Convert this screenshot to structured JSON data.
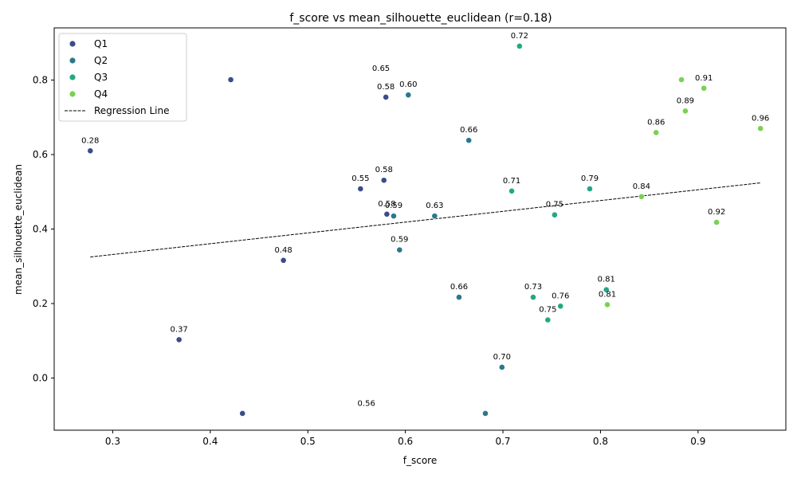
{
  "chart_data": {
    "type": "scatter",
    "title": "f_score vs mean_silhouette_euclidean (r=0.18)",
    "xlabel": "f_score",
    "ylabel": "mean_silhouette_euclidean",
    "xlim": [
      0.24,
      0.99
    ],
    "ylim": [
      -0.14,
      0.94
    ],
    "xticks": [
      "0.3",
      "0.4",
      "0.5",
      "0.6",
      "0.7",
      "0.8",
      "0.9"
    ],
    "xtick_values": [
      0.3,
      0.4,
      0.5,
      0.6,
      0.7,
      0.8,
      0.9
    ],
    "yticks": [
      "0.0",
      "0.2",
      "0.4",
      "0.6",
      "0.8"
    ],
    "ytick_values": [
      0.0,
      0.2,
      0.4,
      0.6,
      0.8
    ],
    "grid": false,
    "legend_position": "top-left",
    "legend": [
      "Q1",
      "Q2",
      "Q3",
      "Q4",
      "Regression Line"
    ],
    "series": [
      {
        "name": "Q1",
        "color": "#3b4c8a",
        "points": [
          {
            "x": 0.277,
            "y": 0.61,
            "label": "0.28"
          },
          {
            "x": 0.368,
            "y": 0.103,
            "label": "0.37"
          },
          {
            "x": 0.421,
            "y": 0.801,
            "label": ""
          },
          {
            "x": 0.433,
            "y": -0.095,
            "label": ""
          },
          {
            "x": 0.475,
            "y": 0.316,
            "label": "0.48"
          },
          {
            "x": 0.554,
            "y": 0.508,
            "label": "0.55"
          },
          {
            "x": 0.578,
            "y": 0.531,
            "label": "0.58"
          },
          {
            "x": 0.58,
            "y": 0.754,
            "label": "0.58"
          },
          {
            "x": 0.581,
            "y": 0.44,
            "label": "0.58"
          }
        ]
      },
      {
        "name": "Q2",
        "color": "#2a788e",
        "points": [
          {
            "x": 0.588,
            "y": 0.435,
            "label": "0.59"
          },
          {
            "x": 0.594,
            "y": 0.344,
            "label": "0.59"
          },
          {
            "x": 0.603,
            "y": 0.76,
            "label": "0.60"
          },
          {
            "x": 0.63,
            "y": 0.435,
            "label": "0.63"
          },
          {
            "x": 0.655,
            "y": 0.217,
            "label": "0.66"
          },
          {
            "x": 0.665,
            "y": 0.638,
            "label": "0.66"
          },
          {
            "x": 0.682,
            "y": -0.095,
            "label": ""
          },
          {
            "x": 0.699,
            "y": 0.029,
            "label": "0.70"
          }
        ]
      },
      {
        "name": "Q3",
        "color": "#22a884",
        "points": [
          {
            "x": 0.709,
            "y": 0.502,
            "label": "0.71"
          },
          {
            "x": 0.717,
            "y": 0.891,
            "label": "0.72"
          },
          {
            "x": 0.731,
            "y": 0.217,
            "label": "0.73"
          },
          {
            "x": 0.746,
            "y": 0.156,
            "label": "0.75"
          },
          {
            "x": 0.753,
            "y": 0.438,
            "label": "0.75"
          },
          {
            "x": 0.759,
            "y": 0.193,
            "label": "0.76"
          },
          {
            "x": 0.789,
            "y": 0.508,
            "label": "0.79"
          },
          {
            "x": 0.806,
            "y": 0.237,
            "label": "0.81"
          }
        ]
      },
      {
        "name": "Q4",
        "color": "#7ad151",
        "points": [
          {
            "x": 0.807,
            "y": 0.197,
            "label": "0.81"
          },
          {
            "x": 0.842,
            "y": 0.487,
            "label": "0.84"
          },
          {
            "x": 0.857,
            "y": 0.659,
            "label": "0.86"
          },
          {
            "x": 0.883,
            "y": 0.801,
            "label": ""
          },
          {
            "x": 0.887,
            "y": 0.717,
            "label": "0.89"
          },
          {
            "x": 0.906,
            "y": 0.778,
            "label": "0.91"
          },
          {
            "x": 0.919,
            "y": 0.418,
            "label": "0.92"
          },
          {
            "x": 0.964,
            "y": 0.67,
            "label": "0.96"
          }
        ]
      }
    ],
    "regression_line": {
      "name": "Regression Line",
      "color": "#000000",
      "x": [
        0.277,
        0.964
      ],
      "y": [
        0.325,
        0.524
      ]
    },
    "free_annotations": [
      {
        "x": 0.575,
        "y": 0.825,
        "text": "0.65"
      },
      {
        "x": 0.56,
        "y": -0.075,
        "text": "0.56"
      }
    ]
  }
}
